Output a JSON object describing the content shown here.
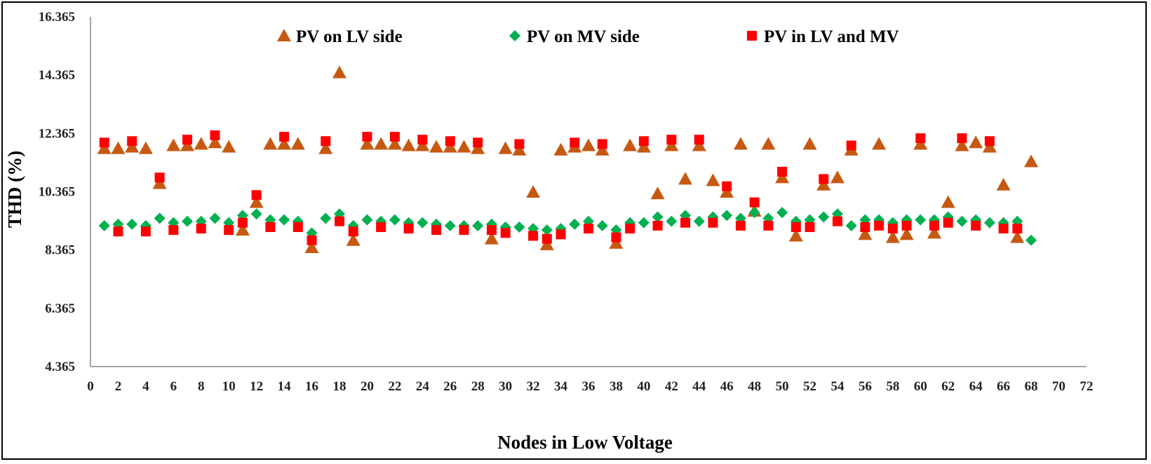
{
  "chart_data": {
    "type": "scatter",
    "xlabel": "Nodes in Low Voltage",
    "ylabel": "THD (%)",
    "xlim": [
      0,
      72
    ],
    "ylim": [
      4.365,
      16.365
    ],
    "x_ticks": [
      0,
      2,
      4,
      6,
      8,
      10,
      12,
      14,
      16,
      18,
      20,
      22,
      24,
      26,
      28,
      30,
      32,
      34,
      36,
      38,
      40,
      42,
      44,
      46,
      48,
      50,
      52,
      54,
      56,
      58,
      60,
      62,
      64,
      66,
      68,
      70,
      72
    ],
    "y_ticks": [
      4.365,
      6.365,
      8.365,
      10.365,
      12.365,
      14.365,
      16.365
    ],
    "y_tick_labels": [
      "4.365",
      "6.365",
      "8.365",
      "10.365",
      "12.365",
      "14.365",
      "16.365"
    ],
    "grid": false,
    "legend_position": "top",
    "series": [
      {
        "name": "PV on LV side",
        "marker": "triangle",
        "color": "#C65911",
        "x": [
          1,
          2,
          3,
          4,
          5,
          6,
          7,
          8,
          9,
          10,
          11,
          12,
          13,
          14,
          15,
          16,
          17,
          18,
          19,
          20,
          21,
          22,
          23,
          24,
          25,
          26,
          27,
          28,
          29,
          30,
          31,
          32,
          33,
          34,
          35,
          36,
          37,
          38,
          39,
          40,
          41,
          42,
          43,
          44,
          45,
          46,
          47,
          48,
          49,
          50,
          51,
          52,
          53,
          54,
          55,
          56,
          57,
          58,
          59,
          60,
          61,
          62,
          63,
          64,
          65,
          66,
          67,
          68
        ],
        "y": [
          11.85,
          11.85,
          11.9,
          11.85,
          10.65,
          11.95,
          11.95,
          12.0,
          12.05,
          11.9,
          9.05,
          10.0,
          12.0,
          12.0,
          12.0,
          8.45,
          11.85,
          14.45,
          8.7,
          12.0,
          12.0,
          12.0,
          11.95,
          11.95,
          11.9,
          11.9,
          11.9,
          11.85,
          8.75,
          11.85,
          11.8,
          10.35,
          8.55,
          11.8,
          11.9,
          11.95,
          11.8,
          8.6,
          11.95,
          11.9,
          10.3,
          11.95,
          10.8,
          11.95,
          10.75,
          10.35,
          12.0,
          9.7,
          12.0,
          10.85,
          8.85,
          12.0,
          10.6,
          10.85,
          11.8,
          8.9,
          12.0,
          8.8,
          8.9,
          12.0,
          8.95,
          10.0,
          11.95,
          12.05,
          11.9,
          10.6,
          8.8,
          11.4
        ]
      },
      {
        "name": "PV on MV side",
        "marker": "diamond",
        "color": "#00B050",
        "x": [
          1,
          2,
          3,
          4,
          5,
          6,
          7,
          8,
          9,
          10,
          11,
          12,
          13,
          14,
          15,
          16,
          17,
          18,
          19,
          20,
          21,
          22,
          23,
          24,
          25,
          26,
          27,
          28,
          29,
          30,
          31,
          32,
          33,
          34,
          35,
          36,
          37,
          38,
          39,
          40,
          41,
          42,
          43,
          44,
          45,
          46,
          47,
          48,
          49,
          50,
          51,
          52,
          53,
          54,
          55,
          56,
          57,
          58,
          59,
          60,
          61,
          62,
          63,
          64,
          65,
          66,
          67,
          68
        ],
        "y": [
          9.2,
          9.25,
          9.25,
          9.2,
          9.45,
          9.3,
          9.35,
          9.35,
          9.45,
          9.3,
          9.55,
          9.6,
          9.4,
          9.4,
          9.35,
          8.95,
          9.45,
          9.6,
          9.2,
          9.4,
          9.35,
          9.4,
          9.3,
          9.3,
          9.25,
          9.2,
          9.2,
          9.2,
          9.25,
          9.15,
          9.15,
          9.1,
          9.05,
          9.1,
          9.25,
          9.35,
          9.2,
          9.05,
          9.3,
          9.3,
          9.5,
          9.35,
          9.55,
          9.35,
          9.5,
          9.55,
          9.45,
          9.65,
          9.45,
          9.65,
          9.35,
          9.4,
          9.5,
          9.6,
          9.2,
          9.4,
          9.4,
          9.3,
          9.4,
          9.4,
          9.4,
          9.5,
          9.35,
          9.4,
          9.3,
          9.3,
          9.35,
          8.7
        ]
      },
      {
        "name": "PV in LV and MV",
        "marker": "square",
        "color": "#FF0000",
        "x": [
          1,
          2,
          3,
          4,
          5,
          6,
          7,
          8,
          9,
          10,
          11,
          12,
          13,
          14,
          15,
          16,
          17,
          18,
          19,
          20,
          21,
          22,
          23,
          24,
          25,
          26,
          27,
          28,
          29,
          30,
          31,
          32,
          33,
          34,
          35,
          36,
          37,
          38,
          39,
          40,
          41,
          42,
          43,
          44,
          45,
          46,
          47,
          48,
          49,
          50,
          51,
          52,
          53,
          54,
          55,
          56,
          57,
          58,
          59,
          60,
          61,
          62,
          63,
          64,
          65,
          66,
          67
        ],
        "y": [
          12.05,
          9.0,
          12.1,
          9.0,
          10.85,
          9.05,
          12.15,
          9.1,
          12.3,
          9.05,
          9.3,
          10.25,
          9.15,
          12.25,
          9.15,
          8.7,
          12.1,
          9.35,
          9.0,
          12.25,
          9.15,
          12.25,
          9.1,
          12.15,
          9.05,
          12.1,
          9.05,
          12.05,
          9.05,
          8.95,
          12.0,
          8.85,
          8.75,
          8.9,
          12.05,
          9.1,
          12.0,
          8.8,
          9.1,
          12.1,
          9.2,
          12.15,
          9.3,
          12.15,
          9.3,
          10.55,
          9.2,
          10.0,
          9.2,
          11.05,
          9.15,
          9.15,
          10.8,
          9.35,
          11.95,
          9.15,
          9.2,
          9.1,
          9.2,
          12.2,
          9.2,
          9.3,
          12.2,
          9.2,
          12.1,
          9.1,
          9.1
        ]
      }
    ]
  }
}
